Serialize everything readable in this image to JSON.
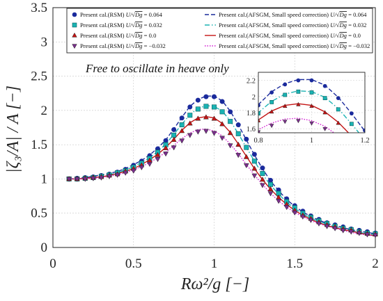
{
  "chart_data": {
    "type": "line",
    "xlabel": "Rω²/g  [−]",
    "ylabel": "|ζ₃/A|  /  A  [−]",
    "xlim": [
      0,
      2
    ],
    "ylim": [
      0,
      3.5
    ],
    "xticks": [
      "0",
      "0.5",
      "1",
      "1.5",
      "2"
    ],
    "yticks": [
      "0",
      "0.5",
      "1",
      "1.5",
      "2",
      "2.5",
      "3",
      "3.5"
    ],
    "grid": true,
    "legend_position": "top",
    "annotation": "Free to oscillate in heave only",
    "colors": {
      "u0064": "#1a2a9c",
      "u0032": "#1ab3b3",
      "u0": "#c41414",
      "um0032": "#7a2f8c",
      "um0032_line": "#d21ad2"
    },
    "x": [
      0.1,
      0.15,
      0.2,
      0.25,
      0.3,
      0.35,
      0.4,
      0.45,
      0.5,
      0.55,
      0.6,
      0.65,
      0.7,
      0.75,
      0.8,
      0.85,
      0.9,
      0.95,
      1.0,
      1.05,
      1.1,
      1.15,
      1.2,
      1.25,
      1.3,
      1.35,
      1.4,
      1.45,
      1.5,
      1.55,
      1.6,
      1.65,
      1.7,
      1.75,
      1.8,
      1.85,
      1.9,
      1.95,
      2.0
    ],
    "series": [
      {
        "name": "Present cal.(RSM) U/√(Dg) = 0.064",
        "kind": "markers",
        "marker": "circle",
        "color_key": "u0064",
        "values": [
          1.0,
          1.01,
          1.02,
          1.03,
          1.05,
          1.07,
          1.1,
          1.14,
          1.2,
          1.26,
          1.34,
          1.44,
          1.56,
          1.72,
          1.89,
          2.05,
          2.15,
          2.2,
          2.2,
          2.13,
          1.98,
          1.79,
          1.58,
          1.36,
          1.16,
          0.98,
          0.84,
          0.71,
          0.61,
          0.53,
          0.46,
          0.41,
          0.36,
          0.33,
          0.3,
          0.27,
          0.25,
          0.23,
          0.21
        ]
      },
      {
        "name": "Present cal.(RSM) U/√(Dg) = 0.032",
        "kind": "markers",
        "marker": "square",
        "color_key": "u0032",
        "values": [
          1.0,
          1.0,
          1.01,
          1.02,
          1.04,
          1.06,
          1.09,
          1.12,
          1.17,
          1.23,
          1.3,
          1.39,
          1.5,
          1.64,
          1.79,
          1.93,
          2.02,
          2.06,
          2.05,
          1.98,
          1.84,
          1.66,
          1.46,
          1.26,
          1.08,
          0.92,
          0.79,
          0.67,
          0.58,
          0.5,
          0.44,
          0.39,
          0.35,
          0.31,
          0.28,
          0.26,
          0.23,
          0.21,
          0.2
        ]
      },
      {
        "name": "Present cal.(RSM) U/√(Dg) = 0.0",
        "kind": "markers",
        "marker": "triangle-up",
        "color_key": "u0",
        "values": [
          1.0,
          1.0,
          1.01,
          1.02,
          1.03,
          1.05,
          1.07,
          1.11,
          1.15,
          1.2,
          1.27,
          1.35,
          1.45,
          1.57,
          1.7,
          1.81,
          1.88,
          1.9,
          1.88,
          1.8,
          1.67,
          1.5,
          1.32,
          1.15,
          0.99,
          0.85,
          0.73,
          0.63,
          0.54,
          0.47,
          0.42,
          0.37,
          0.33,
          0.3,
          0.27,
          0.25,
          0.22,
          0.2,
          0.19
        ]
      },
      {
        "name": "Present cal.(RSM) U/√(Dg) = −0.032",
        "kind": "markers",
        "marker": "triangle-down",
        "color_key": "um0032",
        "values": [
          1.0,
          1.0,
          1.0,
          1.01,
          1.02,
          1.04,
          1.06,
          1.09,
          1.12,
          1.17,
          1.22,
          1.29,
          1.37,
          1.46,
          1.56,
          1.64,
          1.69,
          1.7,
          1.67,
          1.6,
          1.49,
          1.35,
          1.2,
          1.05,
          0.91,
          0.79,
          0.68,
          0.59,
          0.51,
          0.45,
          0.4,
          0.35,
          0.31,
          0.28,
          0.25,
          0.23,
          0.21,
          0.19,
          0.18
        ]
      },
      {
        "name": "Present cal.(AFSGM, Small speed correction) U/√(Dg) = 0.064",
        "kind": "line",
        "dash": "dashed",
        "color_key": "u0064",
        "values": [
          1.0,
          1.01,
          1.02,
          1.04,
          1.06,
          1.08,
          1.11,
          1.15,
          1.21,
          1.27,
          1.35,
          1.45,
          1.57,
          1.73,
          1.9,
          2.06,
          2.16,
          2.21,
          2.21,
          2.14,
          1.99,
          1.79,
          1.57,
          1.35,
          1.15,
          0.97,
          0.83,
          0.7,
          0.6,
          0.52,
          0.45,
          0.4,
          0.35,
          0.32,
          0.29,
          0.26,
          0.24,
          0.22,
          0.2
        ]
      },
      {
        "name": "Present cal.(AFSGM, Small speed correction) U/√(Dg) = 0.032",
        "kind": "line",
        "dash": "dashdot",
        "color_key": "u0032",
        "values": [
          1.0,
          1.0,
          1.01,
          1.02,
          1.04,
          1.06,
          1.09,
          1.13,
          1.18,
          1.24,
          1.31,
          1.4,
          1.51,
          1.65,
          1.8,
          1.94,
          2.03,
          2.07,
          2.06,
          1.99,
          1.85,
          1.66,
          1.46,
          1.26,
          1.07,
          0.91,
          0.78,
          0.66,
          0.57,
          0.49,
          0.43,
          0.38,
          0.34,
          0.3,
          0.27,
          0.25,
          0.22,
          0.2,
          0.19
        ]
      },
      {
        "name": "Present cal.(AFSGM, Small speed correction) U/√(Dg) = 0.0",
        "kind": "line",
        "dash": "solid",
        "color_key": "u0",
        "values": [
          1.0,
          1.0,
          1.01,
          1.02,
          1.03,
          1.05,
          1.08,
          1.11,
          1.15,
          1.21,
          1.28,
          1.36,
          1.46,
          1.58,
          1.71,
          1.82,
          1.89,
          1.91,
          1.89,
          1.81,
          1.68,
          1.51,
          1.33,
          1.15,
          0.99,
          0.85,
          0.73,
          0.63,
          0.54,
          0.47,
          0.41,
          0.36,
          0.32,
          0.29,
          0.26,
          0.24,
          0.21,
          0.19,
          0.17
        ]
      },
      {
        "name": "Present cal.(AFSGM, Small speed correction) U/√(Dg) = −0.032",
        "kind": "line",
        "dash": "dotted",
        "color_key": "um0032_line",
        "values": [
          1.0,
          1.0,
          1.0,
          1.01,
          1.02,
          1.04,
          1.06,
          1.09,
          1.13,
          1.18,
          1.24,
          1.31,
          1.39,
          1.49,
          1.59,
          1.67,
          1.72,
          1.73,
          1.7,
          1.63,
          1.51,
          1.37,
          1.21,
          1.06,
          0.92,
          0.79,
          0.68,
          0.59,
          0.51,
          0.45,
          0.39,
          0.35,
          0.31,
          0.28,
          0.25,
          0.22,
          0.2,
          0.18,
          0.17
        ]
      }
    ],
    "legend": [
      {
        "series_index": 0,
        "prefix": "Present cal.(RSM) ",
        "value": "0.064"
      },
      {
        "series_index": 4,
        "prefix": "Present cal.(AFSGM, Small speed correction) ",
        "value": "0.064"
      },
      {
        "series_index": 1,
        "prefix": "Present cal.(RSM) ",
        "value": "0.032"
      },
      {
        "series_index": 5,
        "prefix": "Present cal.(AFSGM, Small speed correction) ",
        "value": "0.032"
      },
      {
        "series_index": 2,
        "prefix": "Present cal.(RSM) ",
        "value": "0.0"
      },
      {
        "series_index": 6,
        "prefix": "Present cal.(AFSGM, Small speed correction) ",
        "value": "0.0"
      },
      {
        "series_index": 3,
        "prefix": "Present cal.(RSM) ",
        "value": "−0.032"
      },
      {
        "series_index": 7,
        "prefix": "Present cal.(AFSGM, Small speed correction) ",
        "value": "−0.032"
      }
    ],
    "inset": {
      "xlim": [
        0.8,
        1.2
      ],
      "ylim": [
        1.55,
        2.3
      ],
      "xticks": [
        "0.8",
        "1",
        "1.2"
      ],
      "yticks": [
        "1.6",
        "1.8",
        "2",
        "2.2"
      ]
    }
  }
}
